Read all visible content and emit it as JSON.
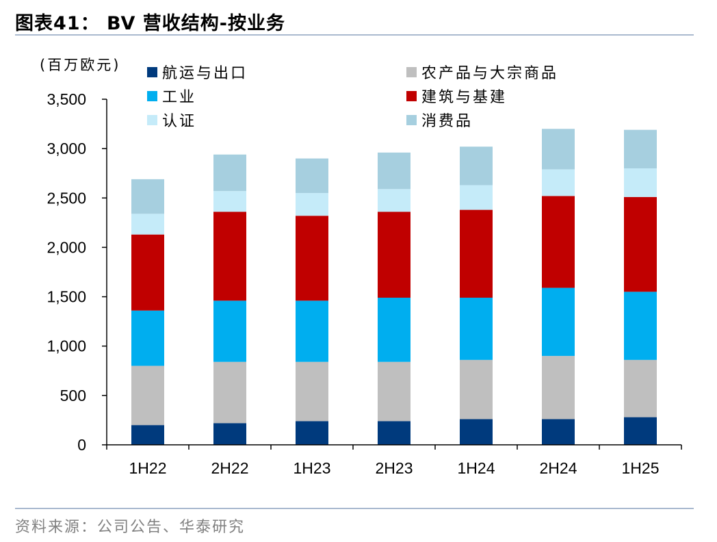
{
  "header": {
    "title": "图表41：  BV 营收结构-按业务"
  },
  "footer": {
    "source": "资料来源：公司公告、华泰研究"
  },
  "chart_data": {
    "type": "bar",
    "stacked": true,
    "unit_label": "(百万欧元)",
    "categories": [
      "1H22",
      "2H22",
      "1H23",
      "2H23",
      "1H24",
      "2H24",
      "1H25"
    ],
    "ylim": [
      0,
      3500
    ],
    "yticks": [
      0,
      500,
      1000,
      1500,
      2000,
      2500,
      3000,
      3500
    ],
    "ytick_labels": [
      "0",
      "500",
      "1,000",
      "1,500",
      "2,000",
      "2,500",
      "3,000",
      "3,500"
    ],
    "legend_position": "top",
    "series": [
      {
        "name": "航运与出口",
        "color": "#003a7d",
        "values": [
          200,
          220,
          240,
          240,
          260,
          260,
          280
        ]
      },
      {
        "name": "农产品与大宗商品",
        "color": "#bfbfbf",
        "values": [
          600,
          620,
          600,
          600,
          600,
          640,
          580
        ]
      },
      {
        "name": "工业",
        "color": "#00aeef",
        "values": [
          560,
          620,
          620,
          650,
          630,
          690,
          690
        ]
      },
      {
        "name": "建筑与基建",
        "color": "#c00000",
        "values": [
          770,
          900,
          860,
          870,
          890,
          930,
          960
        ]
      },
      {
        "name": "认证",
        "color": "#c5ebf9",
        "values": [
          210,
          210,
          230,
          230,
          250,
          270,
          290
        ]
      },
      {
        "name": "消费品",
        "color": "#a6cfdf",
        "values": [
          350,
          370,
          350,
          370,
          390,
          410,
          390
        ]
      }
    ]
  }
}
